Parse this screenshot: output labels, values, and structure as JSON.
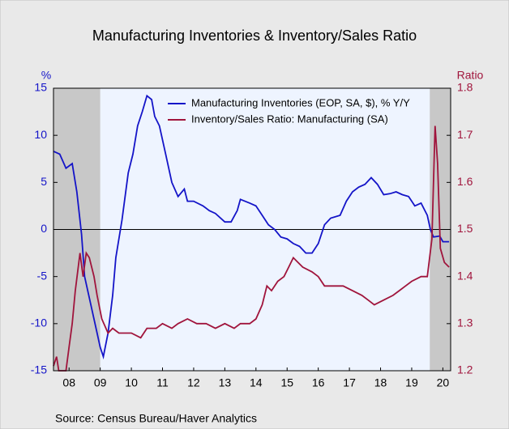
{
  "chart_data": {
    "type": "line",
    "title": "Manufacturing Inventories & Inventory/Sales Ratio",
    "y_label": "%",
    "y2_label": "Ratio",
    "source": "Source:  Census Bureau/Haver Analytics",
    "xlim": [
      2008,
      2020.75
    ],
    "xticks": [
      {
        "value": 2008.5,
        "label": "08"
      },
      {
        "value": 2009.5,
        "label": "09"
      },
      {
        "value": 2010.5,
        "label": "10"
      },
      {
        "value": 2011.5,
        "label": "11"
      },
      {
        "value": 2012.5,
        "label": "12"
      },
      {
        "value": 2013.5,
        "label": "13"
      },
      {
        "value": 2014.5,
        "label": "14"
      },
      {
        "value": 2015.5,
        "label": "15"
      },
      {
        "value": 2016.5,
        "label": "16"
      },
      {
        "value": 2017.5,
        "label": "17"
      },
      {
        "value": 2018.5,
        "label": "18"
      },
      {
        "value": 2019.5,
        "label": "19"
      },
      {
        "value": 2020.5,
        "label": "20"
      }
    ],
    "ylim": [
      -15,
      15
    ],
    "yticks": [
      -15,
      -10,
      -5,
      0,
      5,
      10,
      15
    ],
    "y2lim": [
      1.2,
      1.8
    ],
    "y2ticks": [
      {
        "value": 1.2,
        "label": "1.2"
      },
      {
        "value": 1.3,
        "label": "1.3"
      },
      {
        "value": 1.4,
        "label": "1.4"
      },
      {
        "value": 1.5,
        "label": "1.5"
      },
      {
        "value": 1.6,
        "label": "1.6"
      },
      {
        "value": 1.7,
        "label": "1.7"
      },
      {
        "value": 1.8,
        "label": "1.8"
      }
    ],
    "shaded_ranges": [
      [
        2008,
        2009.5
      ],
      [
        2020.08,
        2020.75
      ]
    ],
    "series": [
      {
        "name": "Manufacturing Inventories (EOP, SA, $), % Y/Y",
        "color": "#1414c8",
        "axis": "y",
        "x": [
          2008.0,
          2008.2,
          2008.4,
          2008.6,
          2008.75,
          2008.9,
          2009.0,
          2009.2,
          2009.4,
          2009.5,
          2009.6,
          2009.75,
          2009.9,
          2010.0,
          2010.2,
          2010.4,
          2010.55,
          2010.7,
          2010.85,
          2011.0,
          2011.15,
          2011.25,
          2011.4,
          2011.6,
          2011.8,
          2012.0,
          2012.2,
          2012.3,
          2012.5,
          2012.8,
          2013.0,
          2013.2,
          2013.5,
          2013.7,
          2013.9,
          2014.0,
          2014.3,
          2014.5,
          2014.7,
          2014.9,
          2015.1,
          2015.3,
          2015.5,
          2015.7,
          2015.9,
          2016.1,
          2016.3,
          2016.5,
          2016.7,
          2016.9,
          2017.2,
          2017.4,
          2017.6,
          2017.8,
          2018.0,
          2018.2,
          2018.4,
          2018.6,
          2018.8,
          2019.0,
          2019.2,
          2019.4,
          2019.6,
          2019.8,
          2020.0,
          2020.1,
          2020.2,
          2020.4,
          2020.5,
          2020.7
        ],
        "values": [
          8.3,
          8.0,
          6.5,
          7.0,
          4,
          -0.5,
          -5,
          -8,
          -11,
          -12.5,
          -13.5,
          -11,
          -7,
          -3,
          1,
          6,
          8,
          11,
          12.5,
          14.2,
          13.8,
          12,
          11,
          8,
          5,
          3.5,
          4.3,
          3,
          3,
          2.5,
          2,
          1.7,
          0.8,
          0.8,
          2,
          3.2,
          2.8,
          2.5,
          1.5,
          0.5,
          0,
          -0.8,
          -1,
          -1.5,
          -1.8,
          -2.5,
          -2.5,
          -1.5,
          0.5,
          1.2,
          1.5,
          3,
          4,
          4.5,
          4.8,
          5.5,
          4.8,
          3.7,
          3.8,
          4,
          3.7,
          3.5,
          2.5,
          2.8,
          1.5,
          0,
          -0.8,
          -0.7,
          -1.3,
          -1.3
        ]
      },
      {
        "name": "Inventory/Sales Ratio: Manufacturing (SA)",
        "color": "#a0143c",
        "axis": "y2",
        "x": [
          2008.0,
          2008.1,
          2008.17,
          2008.4,
          2008.5,
          2008.6,
          2008.7,
          2008.85,
          2008.95,
          2009.05,
          2009.15,
          2009.3,
          2009.4,
          2009.55,
          2009.75,
          2009.9,
          2010.1,
          2010.5,
          2010.8,
          2011.0,
          2011.3,
          2011.5,
          2011.8,
          2012.0,
          2012.3,
          2012.6,
          2012.9,
          2013.2,
          2013.5,
          2013.8,
          2014.0,
          2014.3,
          2014.5,
          2014.7,
          2014.85,
          2015.0,
          2015.2,
          2015.4,
          2015.55,
          2015.7,
          2015.85,
          2016.0,
          2016.3,
          2016.5,
          2016.7,
          2017.0,
          2017.3,
          2017.6,
          2017.9,
          2018.1,
          2018.3,
          2018.6,
          2018.9,
          2019.1,
          2019.3,
          2019.5,
          2019.8,
          2020.0,
          2020.15,
          2020.25,
          2020.33,
          2020.42,
          2020.55,
          2020.7
        ],
        "values": [
          1.21,
          1.23,
          1.2,
          1.2,
          1.25,
          1.3,
          1.37,
          1.45,
          1.4,
          1.45,
          1.44,
          1.4,
          1.36,
          1.31,
          1.28,
          1.29,
          1.28,
          1.28,
          1.27,
          1.29,
          1.29,
          1.3,
          1.29,
          1.3,
          1.31,
          1.3,
          1.3,
          1.29,
          1.3,
          1.29,
          1.3,
          1.3,
          1.31,
          1.34,
          1.38,
          1.37,
          1.39,
          1.4,
          1.42,
          1.44,
          1.43,
          1.42,
          1.41,
          1.4,
          1.38,
          1.38,
          1.38,
          1.37,
          1.36,
          1.35,
          1.34,
          1.35,
          1.36,
          1.37,
          1.38,
          1.39,
          1.4,
          1.4,
          1.48,
          1.72,
          1.64,
          1.46,
          1.43,
          1.42
        ]
      }
    ]
  }
}
